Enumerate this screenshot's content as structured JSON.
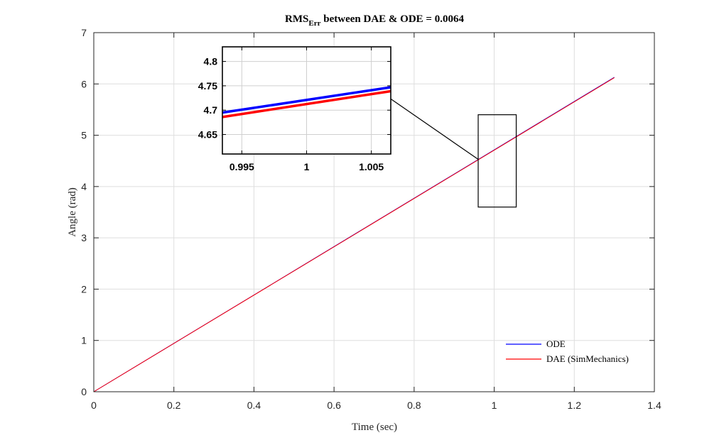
{
  "chart_data": {
    "type": "line",
    "title_main": "RMS",
    "title_sub": "Err",
    "title_rest": " between DAE & ODE = 0.0064",
    "xlabel": "Time (sec)",
    "ylabel": "Angle (rad)",
    "xlim": [
      0,
      1.4
    ],
    "ylim": [
      0,
      7
    ],
    "xticks": [
      "0",
      "0.2",
      "0.4",
      "0.6",
      "0.8",
      "1",
      "1.2",
      "1.4"
    ],
    "yticks": [
      "0",
      "1",
      "2",
      "3",
      "4",
      "5",
      "6",
      "7"
    ],
    "grid": true,
    "legend_position": "bottom-right",
    "series": [
      {
        "name": "ODE",
        "color": "#0000ff",
        "x": [
          0,
          1.3
        ],
        "y": [
          0,
          6.13
        ]
      },
      {
        "name": "DAE (SimMechanics)",
        "color": "#ff0000",
        "x": [
          0,
          1.3
        ],
        "y": [
          0,
          6.122
        ]
      }
    ],
    "zoom_box": {
      "xlim": [
        0.96,
        1.055
      ],
      "ylim": [
        3.6,
        5.4
      ]
    },
    "inset": {
      "xlim": [
        0.9935,
        1.0065
      ],
      "ylim": [
        4.61,
        4.83
      ],
      "xticks": [
        "0.995",
        "1",
        "1.005"
      ],
      "yticks": [
        "4.65",
        "4.7",
        "4.75",
        "4.8"
      ],
      "series": [
        {
          "name": "ODE",
          "color": "#0000ff",
          "x": [
            0.9935,
            1.0065
          ],
          "y": [
            4.695,
            4.747
          ]
        },
        {
          "name": "DAE (SimMechanics)",
          "color": "#ff0000",
          "x": [
            0.9935,
            1.0065
          ],
          "y": [
            4.686,
            4.739
          ]
        }
      ]
    }
  }
}
